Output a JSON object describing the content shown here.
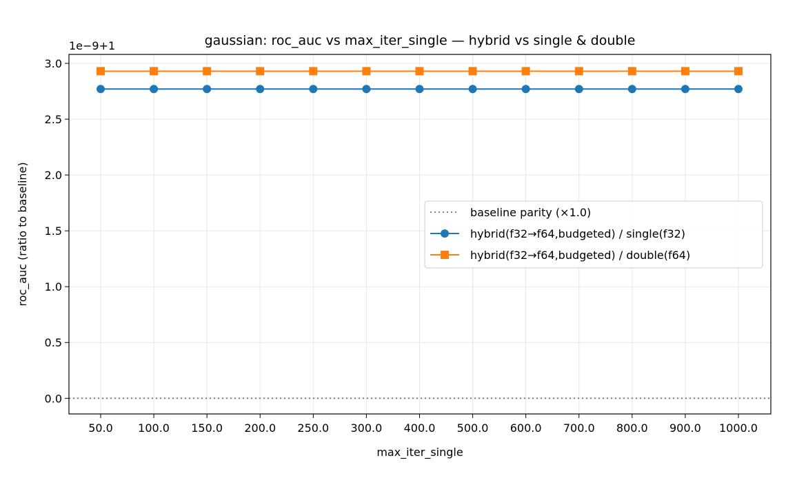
{
  "chart_data": {
    "type": "line",
    "title": "gaussian: roc_auc vs max_iter_single — hybrid vs single & double",
    "xlabel": "max_iter_single",
    "ylabel": "roc_auc (ratio to baseline)",
    "offset_text": "1e−9+1",
    "categories": [
      "50.0",
      "100.0",
      "150.0",
      "200.0",
      "250.0",
      "300.0",
      "400.0",
      "500.0",
      "600.0",
      "700.0",
      "800.0",
      "900.0",
      "1000.0"
    ],
    "y_ticks": [
      0.0,
      0.5,
      1.0,
      1.5,
      2.0,
      2.5,
      3.0
    ],
    "y_tick_labels": [
      "0.0",
      "0.5",
      "1.0",
      "1.5",
      "2.0",
      "2.5",
      "3.0"
    ],
    "ylim": [
      -0.14,
      3.08
    ],
    "grid": true,
    "legend_position": "center-right",
    "baseline": {
      "name": "baseline parity (×1.0)",
      "value": 0.0,
      "color": "#808080",
      "style": "dotted"
    },
    "series": [
      {
        "name": "hybrid(f32→f64,budgeted) / single(f32)",
        "color": "#1f77b4",
        "marker": "circle",
        "values": [
          2.77,
          2.77,
          2.77,
          2.77,
          2.77,
          2.77,
          2.77,
          2.77,
          2.77,
          2.77,
          2.77,
          2.77,
          2.77
        ]
      },
      {
        "name": "hybrid(f32→f64,budgeted) / double(f64)",
        "color": "#ff7f0e",
        "marker": "square",
        "values": [
          2.93,
          2.93,
          2.93,
          2.93,
          2.93,
          2.93,
          2.93,
          2.93,
          2.93,
          2.93,
          2.93,
          2.93,
          2.93
        ]
      }
    ]
  }
}
